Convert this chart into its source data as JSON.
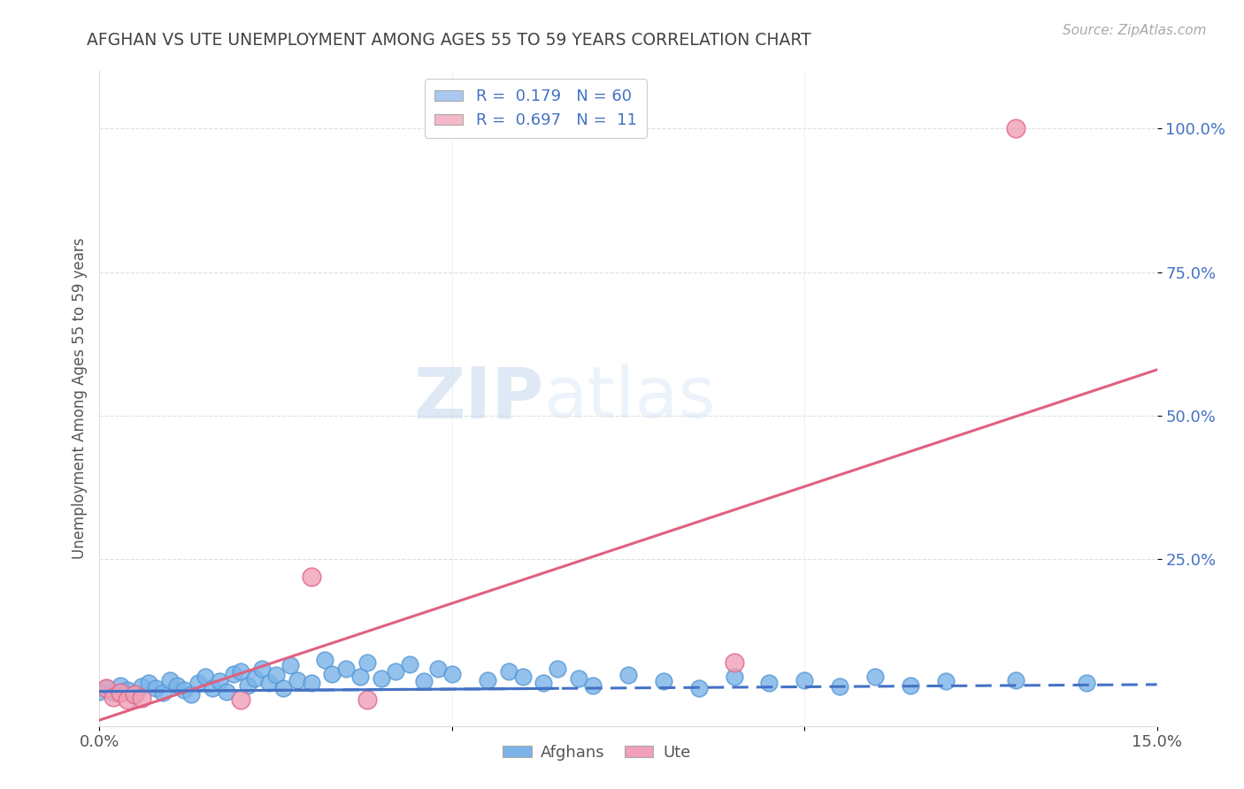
{
  "title": "AFGHAN VS UTE UNEMPLOYMENT AMONG AGES 55 TO 59 YEARS CORRELATION CHART",
  "source": "Source: ZipAtlas.com",
  "ylabel": "Unemployment Among Ages 55 to 59 years",
  "xlim": [
    0.0,
    0.15
  ],
  "ylim": [
    -0.04,
    1.1
  ],
  "watermark_zip": "ZIP",
  "watermark_atlas": "atlas",
  "legend_entries": [
    {
      "label_r": "R =  0.179",
      "label_n": "N = 60",
      "color": "#a8c8f0"
    },
    {
      "label_r": "R =  0.697",
      "label_n": "N =  11",
      "color": "#f5b8c8"
    }
  ],
  "afghans_color": "#7bb3e8",
  "afghans_edge": "#5599d8",
  "ute_color": "#f0a0b8",
  "ute_edge": "#e06888",
  "af_x": [
    0.0,
    0.001,
    0.002,
    0.003,
    0.004,
    0.005,
    0.006,
    0.007,
    0.008,
    0.009,
    0.01,
    0.011,
    0.012,
    0.013,
    0.014,
    0.015,
    0.016,
    0.017,
    0.018,
    0.019,
    0.02,
    0.021,
    0.022,
    0.023,
    0.024,
    0.025,
    0.026,
    0.027,
    0.028,
    0.03,
    0.032,
    0.033,
    0.035,
    0.037,
    0.038,
    0.04,
    0.042,
    0.044,
    0.046,
    0.048,
    0.05,
    0.055,
    0.058,
    0.06,
    0.063,
    0.065,
    0.068,
    0.07,
    0.075,
    0.08,
    0.085,
    0.09,
    0.095,
    0.1,
    0.105,
    0.11,
    0.115,
    0.12,
    0.13,
    0.14
  ],
  "af_y": [
    0.02,
    0.025,
    0.018,
    0.03,
    0.022,
    0.015,
    0.028,
    0.035,
    0.025,
    0.018,
    0.04,
    0.03,
    0.022,
    0.015,
    0.035,
    0.045,
    0.025,
    0.038,
    0.02,
    0.05,
    0.055,
    0.03,
    0.042,
    0.06,
    0.035,
    0.048,
    0.025,
    0.065,
    0.04,
    0.035,
    0.075,
    0.05,
    0.06,
    0.045,
    0.07,
    0.042,
    0.055,
    0.068,
    0.038,
    0.06,
    0.05,
    0.04,
    0.055,
    0.045,
    0.035,
    0.06,
    0.042,
    0.03,
    0.048,
    0.038,
    0.025,
    0.045,
    0.035,
    0.04,
    0.028,
    0.045,
    0.03,
    0.038,
    0.04,
    0.035
  ],
  "af_trend_x": [
    0.0,
    0.15
  ],
  "af_trend_y": [
    0.02,
    0.032
  ],
  "ut_x": [
    0.001,
    0.002,
    0.003,
    0.004,
    0.005,
    0.006,
    0.02,
    0.03,
    0.038,
    0.09,
    0.13
  ],
  "ut_y": [
    0.025,
    0.01,
    0.018,
    0.005,
    0.015,
    0.008,
    0.005,
    0.22,
    0.005,
    0.07,
    1.0
  ],
  "ut_trend_x": [
    0.0,
    0.15
  ],
  "ut_trend_y": [
    -0.03,
    0.58
  ],
  "grid_color": "#cccccc",
  "background_color": "#ffffff",
  "title_color": "#444444",
  "axis_label_color": "#555555",
  "tick_color_y": "#4472c4",
  "tick_color_x": "#555555",
  "yticks_vals": [
    0.25,
    0.5,
    0.75,
    1.0
  ],
  "yticks_labels": [
    "25.0%",
    "50.0%",
    "75.0%",
    "100.0%"
  ]
}
